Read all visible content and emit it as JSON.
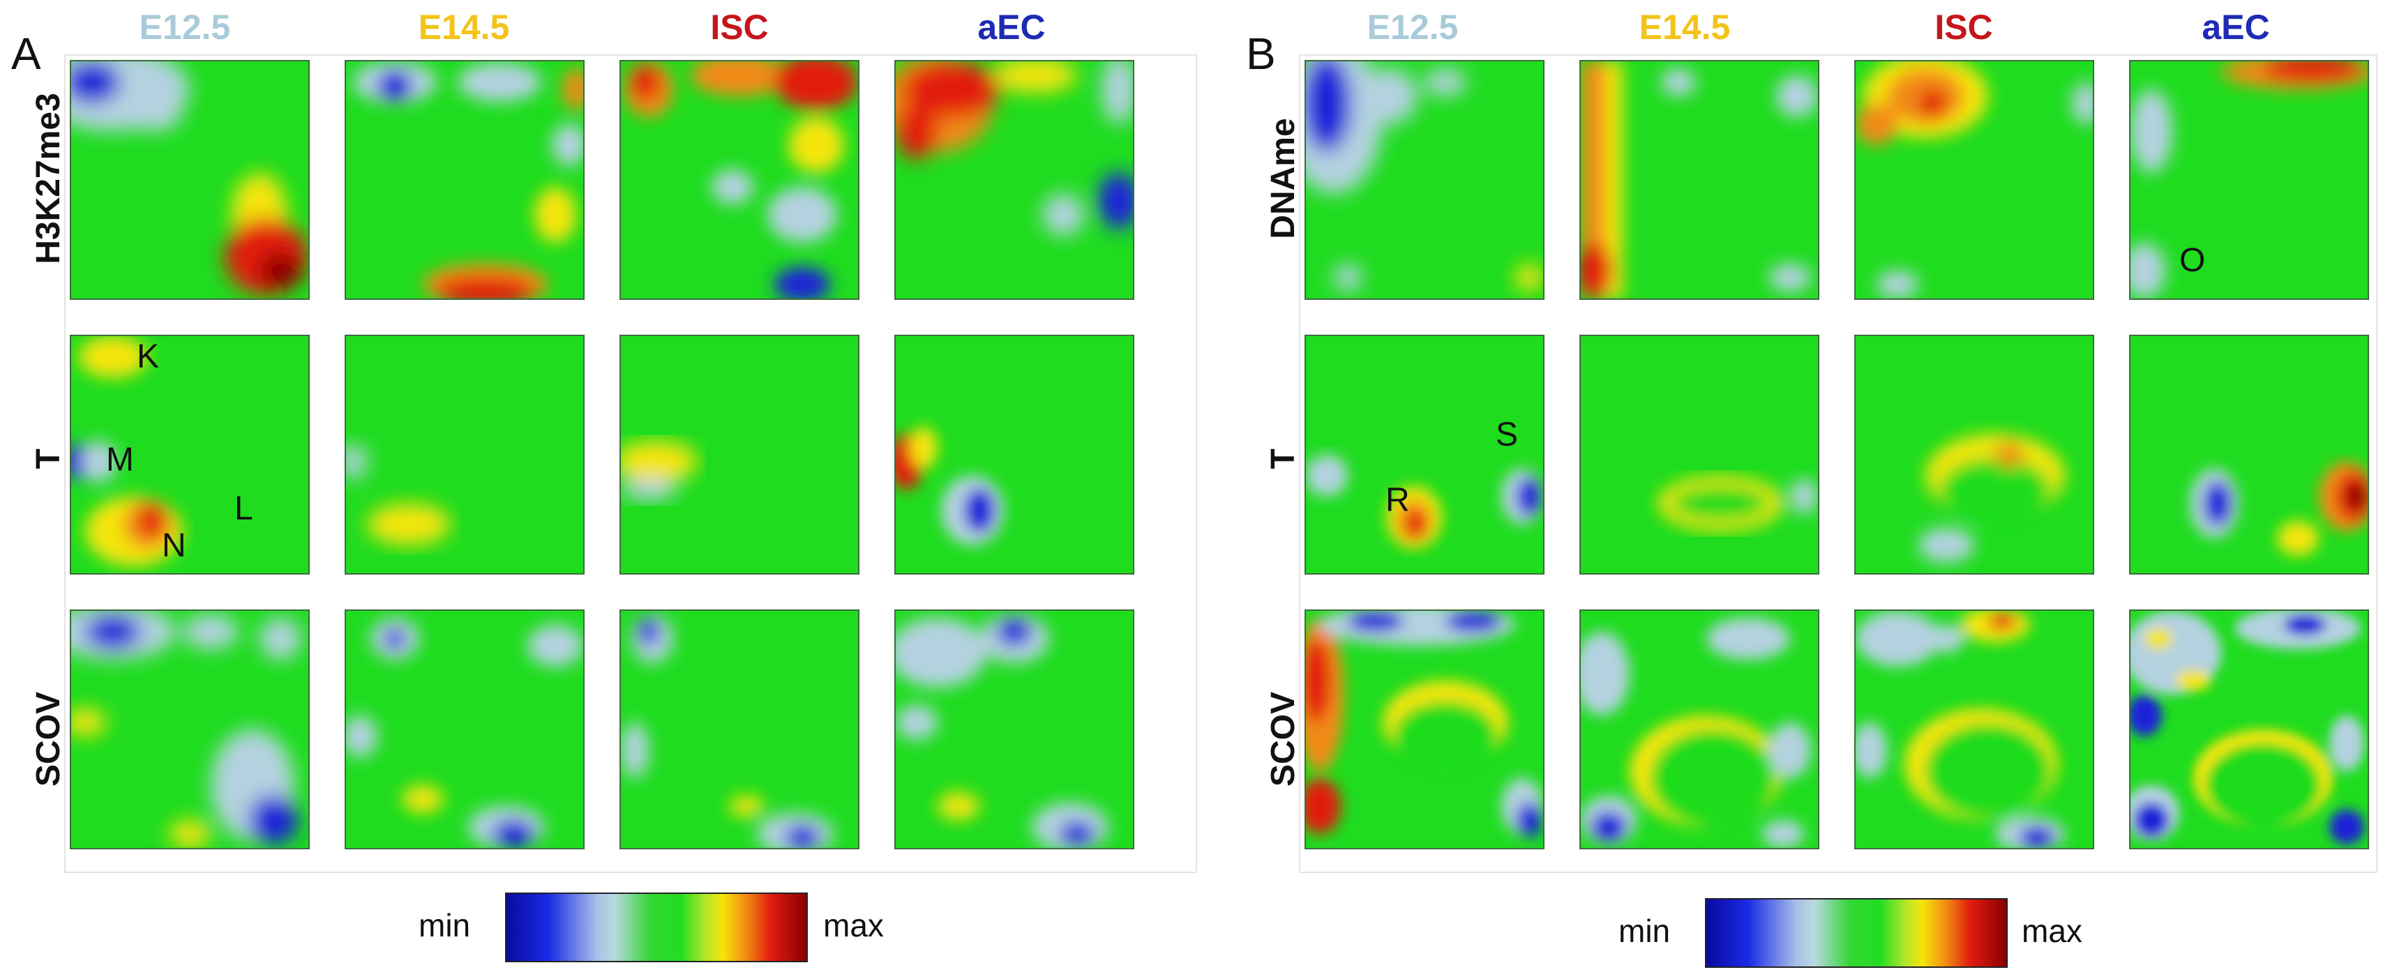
{
  "panels": [
    {
      "letter": "A",
      "columns": [
        {
          "label": "E12.5",
          "color": "#a9cbd9"
        },
        {
          "label": "E14.5",
          "color": "#f3c318"
        },
        {
          "label": "ISC",
          "color": "#c4161c"
        },
        {
          "label": "aEC",
          "color": "#1f2bb3"
        }
      ],
      "rows": [
        {
          "label": "H3K27me3"
        },
        {
          "label": "T",
          "annotations": [
            "K",
            "M",
            "N",
            "L"
          ]
        },
        {
          "label": "SCOV"
        }
      ],
      "legend": {
        "min": "min",
        "max": "max"
      }
    },
    {
      "letter": "B",
      "columns": [
        {
          "label": "E12.5",
          "color": "#a9cbd9"
        },
        {
          "label": "E14.5",
          "color": "#f3c318"
        },
        {
          "label": "ISC",
          "color": "#c4161c"
        },
        {
          "label": "aEC",
          "color": "#1f2bb3"
        }
      ],
      "rows": [
        {
          "label": "DNAme",
          "annotations": [
            "O"
          ]
        },
        {
          "label": "T",
          "annotations": [
            "R",
            "S"
          ]
        },
        {
          "label": "SCOV"
        }
      ],
      "legend": {
        "min": "min",
        "max": "max"
      }
    }
  ],
  "colors": {
    "green": "#1fdc1f",
    "lightblue": "#b4d2e0",
    "blue": "#1a22d8",
    "darkblue": "#0a0aa0",
    "yellow": "#f5e50a",
    "orange": "#f28a12",
    "red": "#e21c10",
    "darkred": "#8a0000"
  }
}
